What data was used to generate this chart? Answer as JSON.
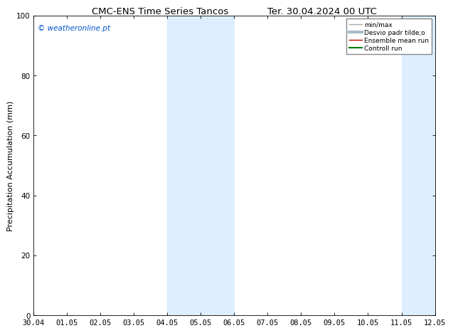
{
  "title_left": "CMC-ENS Time Series Tancos",
  "title_right": "Ter. 30.04.2024 00 UTC",
  "ylabel": "Precipitation Accumulation (mm)",
  "watermark": "© weatheronline.pt",
  "watermark_color": "#0055cc",
  "ylim": [
    0,
    100
  ],
  "xtick_labels": [
    "30.04",
    "01.05",
    "02.05",
    "03.05",
    "04.05",
    "05.05",
    "06.05",
    "07.05",
    "08.05",
    "09.05",
    "10.05",
    "11.05",
    "12.05"
  ],
  "ytick_values": [
    0,
    20,
    40,
    60,
    80,
    100
  ],
  "shaded_regions": [
    {
      "xstart": 4,
      "xend": 6,
      "color": "#ddeeff"
    },
    {
      "xstart": 11,
      "xend": 12,
      "color": "#ddeeff"
    }
  ],
  "legend_entries": [
    {
      "label": "min/max",
      "color": "#aaaaaa",
      "linewidth": 1.0,
      "linestyle": "-"
    },
    {
      "label": "Desvio padr tilde;o",
      "color": "#aabbcc",
      "linewidth": 3.0,
      "linestyle": "-"
    },
    {
      "label": "Ensemble mean run",
      "color": "#cc0000",
      "linewidth": 1.0,
      "linestyle": "-"
    },
    {
      "label": "Controll run",
      "color": "#007700",
      "linewidth": 1.5,
      "linestyle": "-"
    }
  ],
  "background_color": "#ffffff",
  "plot_bg_color": "#ffffff",
  "title_fontsize": 9.5,
  "label_fontsize": 8,
  "tick_fontsize": 7.5,
  "watermark_fontsize": 7.5,
  "legend_fontsize": 6.5
}
